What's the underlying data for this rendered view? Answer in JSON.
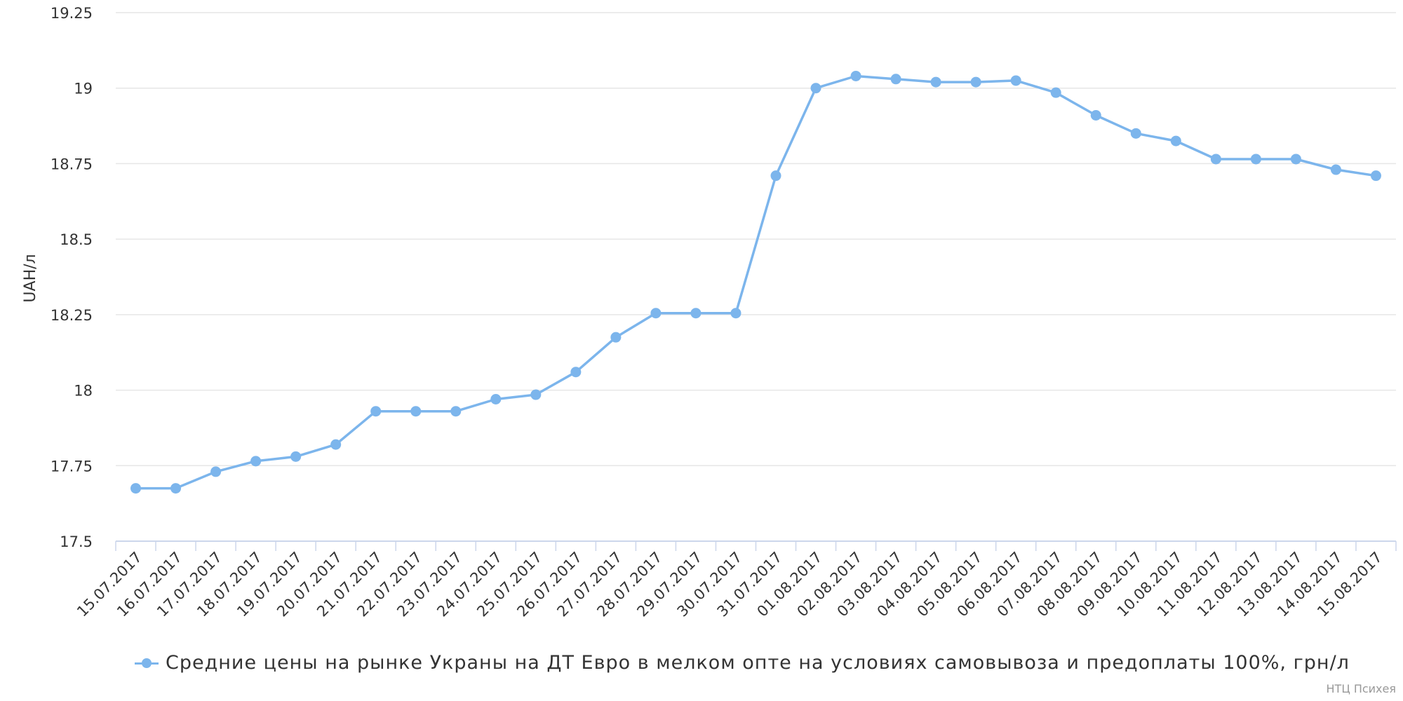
{
  "chart_data": {
    "type": "line",
    "title": "",
    "xlabel": "",
    "ylabel": "UAH/л",
    "ylim": [
      17.5,
      19.25
    ],
    "yticks": [
      "17.5",
      "17.75",
      "18",
      "18.25",
      "18.5",
      "18.75",
      "19",
      "19.25"
    ],
    "ytick_values": [
      17.5,
      17.75,
      18,
      18.25,
      18.5,
      18.75,
      19,
      19.25
    ],
    "grid": true,
    "legend_position": "bottom",
    "color": "#7cb5ec",
    "categories": [
      "15.07.2017",
      "16.07.2017",
      "17.07.2017",
      "18.07.2017",
      "19.07.2017",
      "20.07.2017",
      "21.07.2017",
      "22.07.2017",
      "23.07.2017",
      "24.07.2017",
      "25.07.2017",
      "26.07.2017",
      "27.07.2017",
      "28.07.2017",
      "29.07.2017",
      "30.07.2017",
      "31.07.2017",
      "01.08.2017",
      "02.08.2017",
      "03.08.2017",
      "04.08.2017",
      "05.08.2017",
      "06.08.2017",
      "07.08.2017",
      "08.08.2017",
      "09.08.2017",
      "10.08.2017",
      "11.08.2017",
      "12.08.2017",
      "13.08.2017",
      "14.08.2017",
      "15.08.2017"
    ],
    "series": [
      {
        "name": "Средние цены на рынке Украны на ДТ Евро в мелком опте на условиях самовывоза и предоплаты 100%, грн/л",
        "values": [
          17.675,
          17.675,
          17.73,
          17.765,
          17.78,
          17.82,
          17.93,
          17.93,
          17.93,
          17.97,
          17.985,
          18.06,
          18.175,
          18.255,
          18.255,
          18.255,
          18.71,
          19.0,
          19.04,
          19.03,
          19.02,
          19.02,
          19.025,
          18.985,
          18.91,
          18.85,
          18.825,
          18.765,
          18.765,
          18.765,
          18.73,
          18.71
        ]
      }
    ]
  },
  "credits": "НТЦ Психея"
}
